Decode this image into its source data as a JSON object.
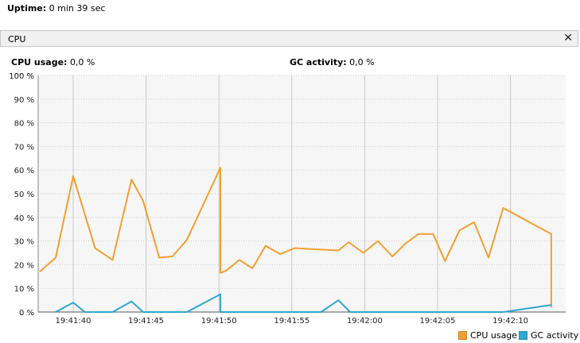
{
  "uptime": {
    "label": "Uptime:",
    "value": "0 min 39 sec"
  },
  "panel": {
    "title": "CPU",
    "close_glyph": "✕"
  },
  "metrics": {
    "cpu": {
      "label": "CPU usage:",
      "value": "0,0 %"
    },
    "gc": {
      "label": "GC activity:",
      "value": "0,0 %"
    }
  },
  "colors": {
    "cpu": "#f0a030",
    "gc": "#30a8d0",
    "plot_bg": "#f6f6f6",
    "grid": "#c8c8c8"
  },
  "chart_data": {
    "type": "line",
    "y_tick_labels": [
      "0 %",
      "10 %",
      "20 %",
      "30 %",
      "40 %",
      "50 %",
      "60 %",
      "70 %",
      "80 %",
      "90 %",
      "100 %"
    ],
    "x_tick_labels": [
      "19:41:40",
      "19:41:45",
      "19:41:50",
      "19:41:55",
      "19:42:00",
      "19:42:05",
      "19:42:10"
    ],
    "ylim": [
      0,
      100
    ],
    "legend": "bottom-right",
    "series": [
      {
        "name": "CPU usage",
        "color": "#f0a030",
        "points": [
          [
            -2.3,
            17
          ],
          [
            -1.2,
            23
          ],
          [
            0,
            57.5
          ],
          [
            1.5,
            27
          ],
          [
            2.7,
            22
          ],
          [
            4,
            56
          ],
          [
            4.8,
            47
          ],
          [
            5.9,
            23
          ],
          [
            6.8,
            23.5
          ],
          [
            7.8,
            30.5
          ],
          [
            10.1,
            61
          ],
          [
            10.1,
            16.5
          ],
          [
            10.5,
            17.5
          ],
          [
            11.4,
            22
          ],
          [
            12.3,
            18.5
          ],
          [
            13.2,
            28
          ],
          [
            14.2,
            24.5
          ],
          [
            15.2,
            27
          ],
          [
            18.2,
            26
          ],
          [
            18.9,
            29.5
          ],
          [
            19.9,
            25
          ],
          [
            20.9,
            30
          ],
          [
            21.9,
            23.5
          ],
          [
            22.8,
            29
          ],
          [
            23.7,
            33
          ],
          [
            24.7,
            33
          ],
          [
            25.5,
            21.5
          ],
          [
            26.5,
            34.5
          ],
          [
            27.5,
            38
          ],
          [
            28.5,
            23
          ],
          [
            29.5,
            44
          ],
          [
            32.8,
            33
          ],
          [
            32.8,
            2
          ]
        ]
      },
      {
        "name": "GC activity",
        "color": "#30a8d0",
        "points": [
          [
            -1.2,
            0
          ],
          [
            0,
            4
          ],
          [
            0.8,
            0
          ],
          [
            2.7,
            0
          ],
          [
            4,
            4.5
          ],
          [
            4.8,
            0
          ],
          [
            7.8,
            0
          ],
          [
            10.1,
            7.5
          ],
          [
            10.1,
            0
          ],
          [
            17,
            0
          ],
          [
            18.2,
            5
          ],
          [
            19,
            0
          ],
          [
            29.5,
            0
          ],
          [
            32.8,
            3
          ]
        ]
      }
    ]
  }
}
